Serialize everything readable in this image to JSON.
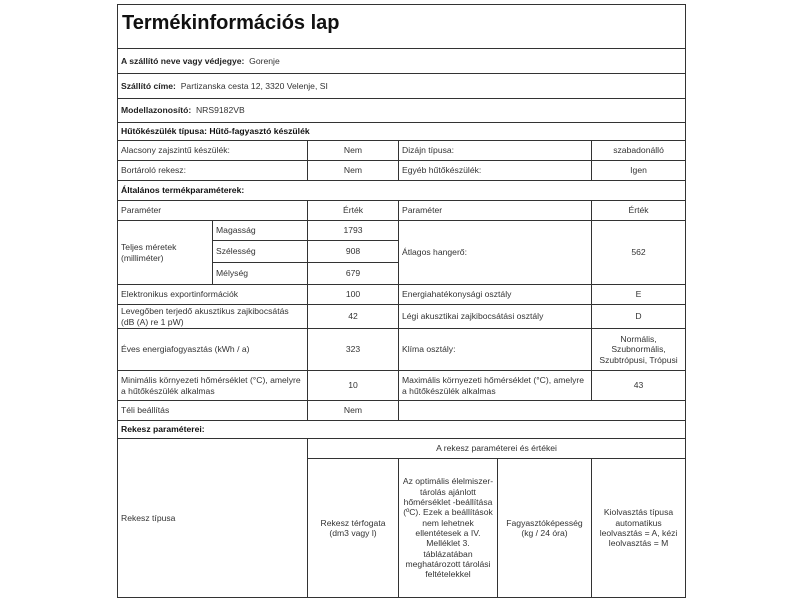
{
  "title": "Termékinformációs lap",
  "supplier": {
    "label": "A szállító neve vagy védjegye:",
    "value": "Gorenje"
  },
  "address": {
    "label": "Szállító címe:",
    "value": "Partizanska cesta 12, 3320 Velenje, SI"
  },
  "model": {
    "label": "Modellazonosító:",
    "value": "NRS9182VB"
  },
  "appliance_type": "Hűtőkészülék típusa: Hűtő-fagyasztó készülék",
  "basic_rows": [
    {
      "l1": "Alacsony zajszintű készülék:",
      "v1": "Nem",
      "l2": "Dizájn típusa:",
      "v2": "szabadonálló"
    },
    {
      "l1": "Bortároló rekesz:",
      "v1": "Nem",
      "l2": "Egyéb hűtőkészülék:",
      "v2": "Igen"
    }
  ],
  "general_heading": "Általános termékparaméterek:",
  "params_header": {
    "param": "Paraméter",
    "value": "Érték"
  },
  "dimensions": {
    "label": "Teljes méretek (milliméter)",
    "items": [
      {
        "label": "Magasság",
        "value": "1793"
      },
      {
        "label": "Szélesség",
        "value": "908"
      },
      {
        "label": "Mélység",
        "value": "679"
      }
    ],
    "right_label": "Átlagos hangerő:",
    "right_value": "562"
  },
  "param_rows": [
    {
      "l1": "Elektronikus exportinformációk",
      "v1": "100",
      "l2": "Energiahatékonysági osztály",
      "v2": "E"
    },
    {
      "l1": "Levegőben terjedő akusztikus zajkibocsátás (dB (A) re 1 pW)",
      "v1": "42",
      "l2": "Légi akusztikai zajkibocsátási osztály",
      "v2": "D"
    },
    {
      "l1": "Éves energiafogyasztás (kWh / a)",
      "v1": "323",
      "l2": "Klíma osztály:",
      "v2": "Normális, Szubnormális, Szubtrópusi, Trópusi"
    },
    {
      "l1": "Minimális környezeti hőmérséklet (°C), amelyre a hűtőkészülék alkalmas",
      "v1": "10",
      "l2": "Maximális környezeti hőmérséklet (°C), amelyre a hűtőkészülék alkalmas",
      "v2": "43"
    },
    {
      "l1": "Téli beállítás",
      "v1": "Nem",
      "l2": "",
      "v2": ""
    }
  ],
  "compartment": {
    "heading": "Rekesz paraméterei:",
    "type_label": "Rekesz típusa",
    "group_header": "A rekesz paraméterei és értékei",
    "columns": [
      "Rekesz térfogata (dm3 vagy l)",
      "Az optimális élelmiszer-tárolás ajánlott hőmérséklet -beállítása (ºC). Ezek a beállítások nem lehetnek ellentétesek a IV. Melléklet 3. táblázatában meghatározott tárolási feltételekkel",
      "Fagyasztóképesség (kg / 24 óra)",
      "Kiolvasztás típusa automatikus leolvasztás = A, kézi leolvasztás = M"
    ]
  }
}
